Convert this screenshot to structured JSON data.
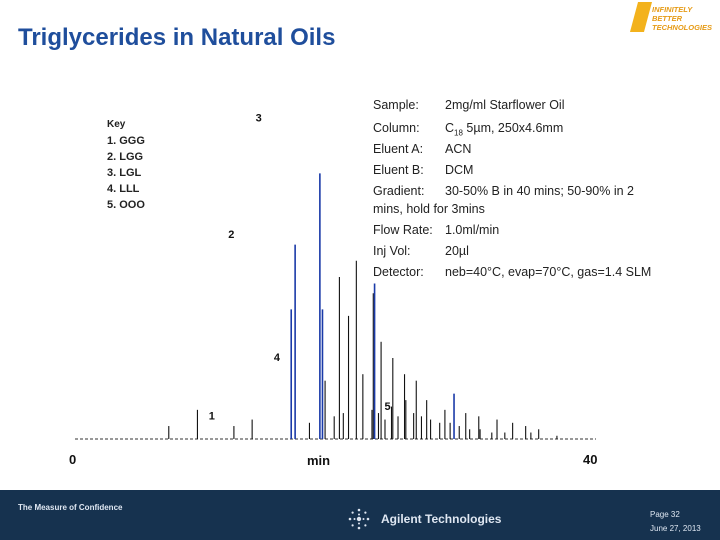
{
  "slide": {
    "title": "Triglycerides in Natural Oils",
    "logo_line1": "INFINITELY BETTER",
    "logo_line2": "TECHNOLOGIES"
  },
  "key": {
    "title": "Key",
    "items": [
      "1. GGG",
      "2. LGG",
      "3. LGL",
      "4. LLL",
      "5. OOO"
    ]
  },
  "conditions": {
    "sample_label": "Sample:",
    "sample_value": "2mg/ml Starflower Oil",
    "column_label": "Column:",
    "column_value_main": "C",
    "column_value_sub": "18",
    "column_value_rest": " 5µm, 250x4.6mm",
    "eluent_a_label": "Eluent A:",
    "eluent_a_value": "ACN",
    "eluent_b_label": "Eluent B:",
    "eluent_b_value": "DCM",
    "gradient_label": "Gradient:",
    "gradient_value": "30-50% B in 40 mins; 50-90% in 2",
    "gradient_cont": "mins, hold for 3mins",
    "flow_label": "Flow Rate:",
    "flow_value": "1.0ml/min",
    "inj_label": "Inj Vol:",
    "inj_value": "20µl",
    "detector_label": "Detector:",
    "detector_value": "neb=40°C, evap=70°C, gas=1.4 SLM"
  },
  "chart_data": {
    "type": "line",
    "xlabel": "min",
    "xlim": [
      0,
      40
    ],
    "ylim": [
      0,
      100
    ],
    "x_tick_labels": [
      "0",
      "40"
    ],
    "series_color": "#1a3aa8",
    "peaks": [
      {
        "x": 7.2,
        "h": 4,
        "color": "#111111"
      },
      {
        "x": 9.4,
        "h": 9,
        "color": "#111111"
      },
      {
        "x": 12.2,
        "h": 4,
        "color": "#111111"
      },
      {
        "x": 13.6,
        "h": 6,
        "color": "#111111"
      },
      {
        "x": 16.6,
        "h": 40,
        "color": "#1a3aa8"
      },
      {
        "x": 16.9,
        "h": 60,
        "color": "#1a3aa8"
      },
      {
        "x": 18.0,
        "h": 5,
        "color": "#111111"
      },
      {
        "x": 19.2,
        "h": 18,
        "color": "#111111"
      },
      {
        "x": 19.9,
        "h": 7,
        "color": "#111111"
      },
      {
        "x": 20.6,
        "h": 8,
        "color": "#111111"
      },
      {
        "x": 21.6,
        "h": 55,
        "color": "#111111"
      },
      {
        "x": 22.1,
        "h": 20,
        "color": "#111111"
      },
      {
        "x": 22.8,
        "h": 9,
        "color": "#111111"
      },
      {
        "x": 23.3,
        "h": 8,
        "color": "#111111"
      },
      {
        "x": 23.8,
        "h": 6,
        "color": "#111111"
      },
      {
        "x": 24.3,
        "h": 10,
        "color": "#111111"
      },
      {
        "x": 24.8,
        "h": 7,
        "color": "#111111"
      },
      {
        "x": 25.4,
        "h": 12,
        "color": "#111111"
      },
      {
        "x": 26.0,
        "h": 8,
        "color": "#111111"
      },
      {
        "x": 26.6,
        "h": 7,
        "color": "#111111"
      },
      {
        "x": 27.3,
        "h": 6,
        "color": "#111111"
      },
      {
        "x": 28.0,
        "h": 5,
        "color": "#111111"
      },
      {
        "x": 28.8,
        "h": 5,
        "color": "#111111"
      },
      {
        "x": 29.5,
        "h": 4,
        "color": "#111111"
      },
      {
        "x": 30.3,
        "h": 3,
        "color": "#111111"
      },
      {
        "x": 31.1,
        "h": 3,
        "color": "#111111"
      },
      {
        "x": 32.0,
        "h": 2,
        "color": "#111111"
      },
      {
        "x": 33.0,
        "h": 2,
        "color": "#111111"
      },
      {
        "x": 35.0,
        "h": 2,
        "color": "#111111"
      },
      {
        "x": 37.0,
        "h": 1,
        "color": "#111111"
      },
      {
        "x": 18.8,
        "h": 82,
        "color": "#1a3aa8"
      },
      {
        "x": 19.0,
        "h": 40,
        "color": "#1a3aa8"
      },
      {
        "x": 20.3,
        "h": 50,
        "color": "#111111"
      },
      {
        "x": 21.0,
        "h": 38,
        "color": "#111111"
      },
      {
        "x": 22.9,
        "h": 45,
        "color": "#111111"
      },
      {
        "x": 23.0,
        "h": 48,
        "color": "#1a3aa8"
      },
      {
        "x": 23.5,
        "h": 30,
        "color": "#111111"
      },
      {
        "x": 24.4,
        "h": 25,
        "color": "#111111"
      },
      {
        "x": 25.3,
        "h": 20,
        "color": "#111111"
      },
      {
        "x": 26.2,
        "h": 18,
        "color": "#111111"
      },
      {
        "x": 27.0,
        "h": 12,
        "color": "#111111"
      },
      {
        "x": 28.4,
        "h": 9,
        "color": "#111111"
      },
      {
        "x": 29.1,
        "h": 14,
        "color": "#1a3aa8"
      },
      {
        "x": 30.0,
        "h": 8,
        "color": "#111111"
      },
      {
        "x": 31.0,
        "h": 7,
        "color": "#111111"
      },
      {
        "x": 32.4,
        "h": 6,
        "color": "#111111"
      },
      {
        "x": 33.6,
        "h": 5,
        "color": "#111111"
      },
      {
        "x": 34.6,
        "h": 4,
        "color": "#111111"
      },
      {
        "x": 35.6,
        "h": 3,
        "color": "#111111"
      }
    ],
    "peak_labels": [
      {
        "text": "1",
        "x": 10.5,
        "h": 6
      },
      {
        "text": "2",
        "x": 12.0,
        "h": 62
      },
      {
        "text": "3",
        "x": 14.1,
        "h": 98
      },
      {
        "text": "4",
        "x": 15.5,
        "h": 24
      },
      {
        "text": "5",
        "x": 24.0,
        "h": 9
      }
    ]
  },
  "footer": {
    "tagline": "The Measure of Confidence",
    "company": "Agilent Technologies",
    "page": "Page 32",
    "date": "June 27, 2013"
  }
}
